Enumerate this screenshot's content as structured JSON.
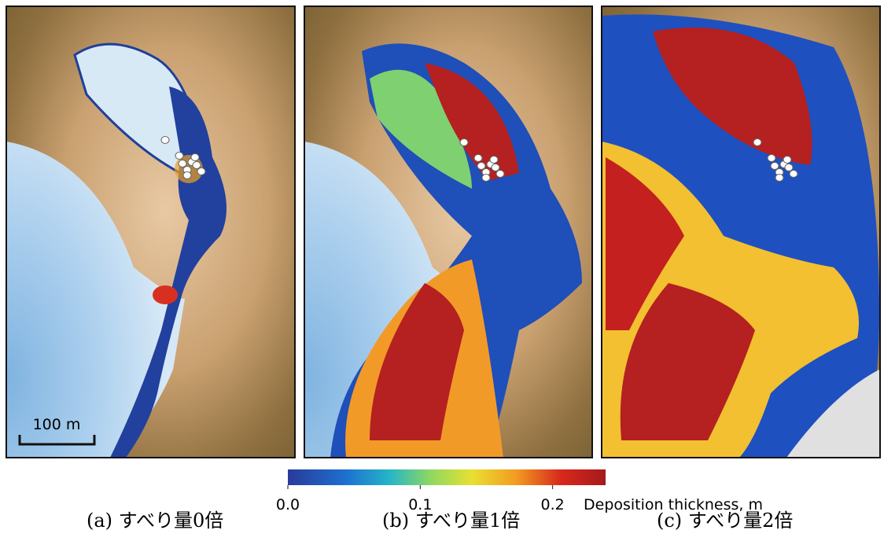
{
  "panels": [
    {
      "caption": "(a) すべり量0倍",
      "scale_bar": "100 m"
    },
    {
      "caption": "(b) すべり量1倍"
    },
    {
      "caption": "(c) すべり量2倍"
    }
  ],
  "colorbar": {
    "label": "Deposition thickness, m",
    "lim": [
      0,
      0.24
    ],
    "ticks": [
      {
        "value": 0,
        "label": "0.0"
      },
      0.1,
      0.2
    ]
  }
}
